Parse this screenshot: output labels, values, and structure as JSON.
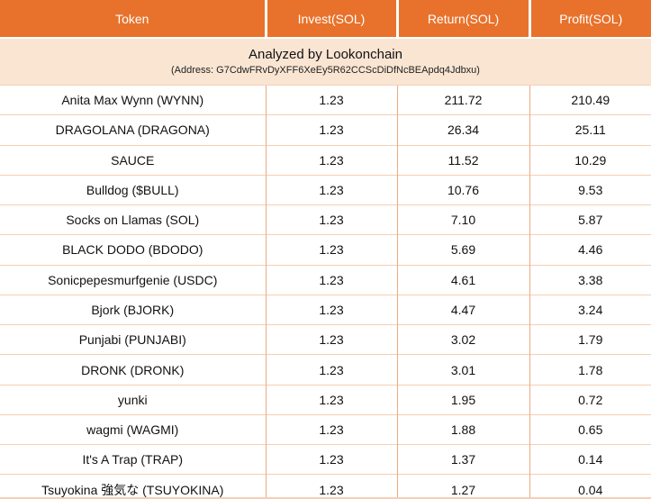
{
  "colors": {
    "header_bg": "#E8722B",
    "header_text": "#FFFFFF",
    "banner_bg": "#FAE5D3",
    "grid_horizontal": "#F5CFB2",
    "grid_vertical": "#EDAA80",
    "body_text": "#111111",
    "row_bg": "#FFFFFF"
  },
  "table": {
    "headers": [
      "Token",
      "Invest(SOL)",
      "Return(SOL)",
      "Profit(SOL)"
    ],
    "banner": {
      "title": "Analyzed by Lookonchain",
      "address": "(Address: G7CdwFRvDyXFF6XeEy5R62CCScDiDfNcBEApdq4Jdbxu)"
    },
    "rows": [
      [
        "Anita Max Wynn (WYNN)",
        "1.23",
        "211.72",
        "210.49"
      ],
      [
        "DRAGOLANA (DRAGONA)",
        "1.23",
        "26.34",
        "25.11"
      ],
      [
        "SAUCE",
        "1.23",
        "11.52",
        "10.29"
      ],
      [
        "Bulldog ($BULL)",
        "1.23",
        "10.76",
        "9.53"
      ],
      [
        "Socks on Llamas (SOL)",
        "1.23",
        "7.10",
        "5.87"
      ],
      [
        "BLACK DODO (BDODO)",
        "1.23",
        "5.69",
        "4.46"
      ],
      [
        "Sonicpepesmurfgenie (USDC)",
        "1.23",
        "4.61",
        "3.38"
      ],
      [
        "Bjork (BJORK)",
        "1.23",
        "4.47",
        "3.24"
      ],
      [
        "Punjabi (PUNJABI)",
        "1.23",
        "3.02",
        "1.79"
      ],
      [
        "DRONK (DRONK)",
        "1.23",
        "3.01",
        "1.78"
      ],
      [
        "yunki",
        "1.23",
        "1.95",
        "0.72"
      ],
      [
        "wagmi (WAGMI)",
        "1.23",
        "1.88",
        "0.65"
      ],
      [
        "It's A Trap (TRAP)",
        "1.23",
        "1.37",
        "0.14"
      ],
      [
        "Tsuyokina 強気な (TSUYOKINA)",
        "1.23",
        "1.27",
        "0.04"
      ]
    ]
  },
  "chart_data": {
    "type": "table",
    "title": "Analyzed by Lookonchain",
    "subtitle": "(Address: G7CdwFRvDyXFF6XeEy5R62CCScDiDfNcBEApdq4Jdbxu)",
    "columns": [
      "Token",
      "Invest(SOL)",
      "Return(SOL)",
      "Profit(SOL)"
    ],
    "rows": [
      {
        "token": "Anita Max Wynn (WYNN)",
        "invest_sol": 1.23,
        "return_sol": 211.72,
        "profit_sol": 210.49
      },
      {
        "token": "DRAGOLANA (DRAGONA)",
        "invest_sol": 1.23,
        "return_sol": 26.34,
        "profit_sol": 25.11
      },
      {
        "token": "SAUCE",
        "invest_sol": 1.23,
        "return_sol": 11.52,
        "profit_sol": 10.29
      },
      {
        "token": "Bulldog ($BULL)",
        "invest_sol": 1.23,
        "return_sol": 10.76,
        "profit_sol": 9.53
      },
      {
        "token": "Socks on Llamas (SOL)",
        "invest_sol": 1.23,
        "return_sol": 7.1,
        "profit_sol": 5.87
      },
      {
        "token": "BLACK DODO (BDODO)",
        "invest_sol": 1.23,
        "return_sol": 5.69,
        "profit_sol": 4.46
      },
      {
        "token": "Sonicpepesmurfgenie (USDC)",
        "invest_sol": 1.23,
        "return_sol": 4.61,
        "profit_sol": 3.38
      },
      {
        "token": "Bjork (BJORK)",
        "invest_sol": 1.23,
        "return_sol": 4.47,
        "profit_sol": 3.24
      },
      {
        "token": "Punjabi (PUNJABI)",
        "invest_sol": 1.23,
        "return_sol": 3.02,
        "profit_sol": 1.79
      },
      {
        "token": "DRONK (DRONK)",
        "invest_sol": 1.23,
        "return_sol": 3.01,
        "profit_sol": 1.78
      },
      {
        "token": "yunki",
        "invest_sol": 1.23,
        "return_sol": 1.95,
        "profit_sol": 0.72
      },
      {
        "token": "wagmi (WAGMI)",
        "invest_sol": 1.23,
        "return_sol": 1.88,
        "profit_sol": 0.65
      },
      {
        "token": "It's A Trap (TRAP)",
        "invest_sol": 1.23,
        "return_sol": 1.37,
        "profit_sol": 0.14
      },
      {
        "token": "Tsuyokina 強気な (TSUYOKINA)",
        "invest_sol": 1.23,
        "return_sol": 1.27,
        "profit_sol": 0.04
      }
    ]
  }
}
